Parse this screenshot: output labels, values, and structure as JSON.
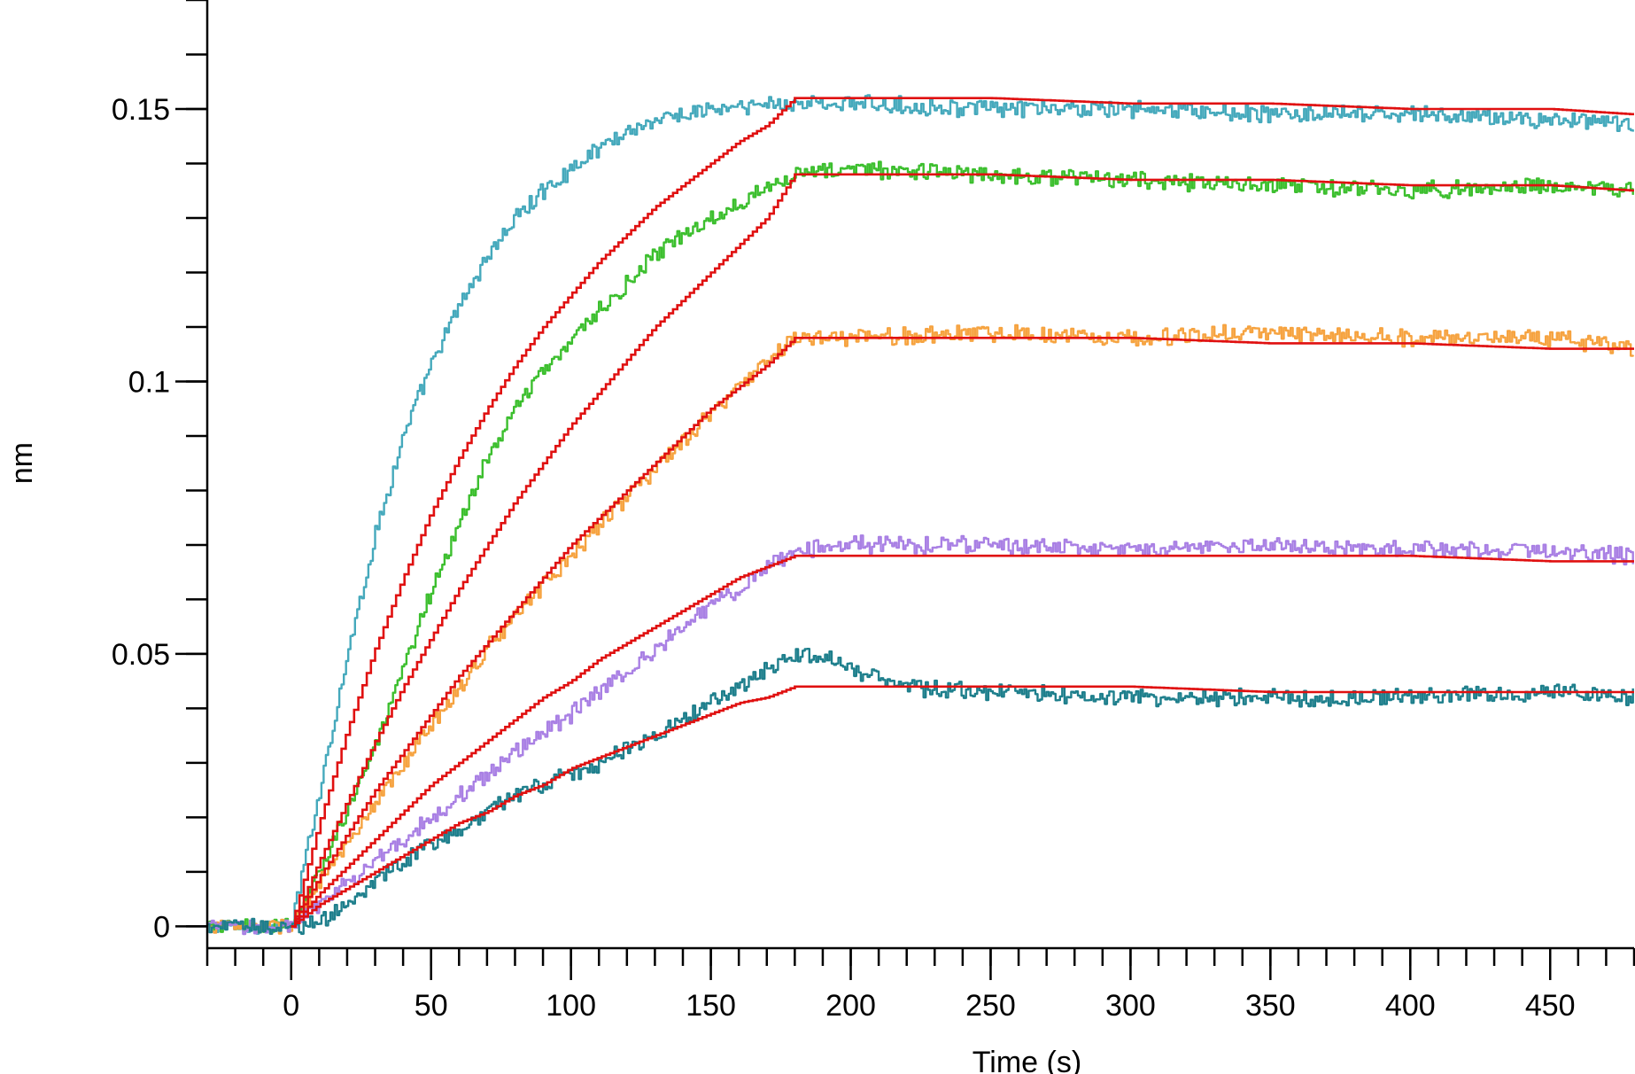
{
  "chart_data": {
    "type": "line",
    "title": "",
    "xlabel": "Time (s)",
    "ylabel": "nm",
    "xlim": [
      -30,
      480
    ],
    "ylim": [
      -0.004,
      0.17
    ],
    "x_ticks": [
      0,
      50,
      100,
      150,
      200,
      250,
      300,
      350,
      400,
      450
    ],
    "x_tick_labels": [
      "0",
      "50",
      "100",
      "150",
      "200",
      "250",
      "300",
      "350",
      "400",
      "450"
    ],
    "x_minor_step": 10,
    "y_ticks": [
      0,
      0.05,
      0.1,
      0.15
    ],
    "y_tick_labels": [
      "0",
      "0.05",
      "0.1",
      "0.15"
    ],
    "y_minor_step": 0.01,
    "grid": false,
    "legend": false,
    "association_end": 180,
    "series": [
      {
        "color": "#45A9BC",
        "role": "measured",
        "x": [
          -30,
          0,
          10,
          20,
          30,
          40,
          50,
          60,
          70,
          80,
          90,
          100,
          110,
          120,
          130,
          140,
          150,
          160,
          170,
          180,
          200,
          250,
          300,
          350,
          400,
          450,
          480
        ],
        "y": [
          0,
          0,
          0.025,
          0.05,
          0.072,
          0.09,
          0.103,
          0.114,
          0.123,
          0.13,
          0.135,
          0.139,
          0.143,
          0.146,
          0.148,
          0.149,
          0.15,
          0.15,
          0.151,
          0.151,
          0.151,
          0.15,
          0.15,
          0.149,
          0.149,
          0.148,
          0.147
        ]
      },
      {
        "color": "#E01010",
        "role": "fit",
        "x": [
          0,
          10,
          20,
          30,
          40,
          50,
          60,
          70,
          80,
          90,
          100,
          110,
          120,
          130,
          140,
          150,
          160,
          170,
          180,
          200,
          250,
          300,
          350,
          400,
          450,
          480
        ],
        "y": [
          0,
          0.019,
          0.036,
          0.051,
          0.064,
          0.076,
          0.086,
          0.095,
          0.103,
          0.11,
          0.116,
          0.122,
          0.127,
          0.132,
          0.136,
          0.14,
          0.144,
          0.147,
          0.152,
          0.152,
          0.152,
          0.151,
          0.151,
          0.15,
          0.15,
          0.149
        ]
      },
      {
        "color": "#3CBF2E",
        "role": "measured",
        "x": [
          -30,
          0,
          10,
          20,
          30,
          40,
          50,
          60,
          70,
          80,
          90,
          100,
          110,
          120,
          130,
          140,
          150,
          160,
          170,
          180,
          200,
          250,
          300,
          350,
          400,
          450,
          480
        ],
        "y": [
          0,
          0,
          0.01,
          0.022,
          0.033,
          0.047,
          0.062,
          0.074,
          0.086,
          0.095,
          0.102,
          0.108,
          0.113,
          0.118,
          0.123,
          0.127,
          0.13,
          0.133,
          0.136,
          0.138,
          0.139,
          0.138,
          0.137,
          0.136,
          0.135,
          0.136,
          0.135
        ]
      },
      {
        "color": "#E01010",
        "role": "fit",
        "x": [
          0,
          10,
          20,
          30,
          40,
          50,
          60,
          70,
          80,
          90,
          100,
          110,
          120,
          130,
          140,
          150,
          160,
          170,
          180,
          200,
          250,
          300,
          350,
          400,
          450,
          480
        ],
        "y": [
          0,
          0.012,
          0.023,
          0.034,
          0.044,
          0.053,
          0.062,
          0.07,
          0.078,
          0.085,
          0.092,
          0.098,
          0.104,
          0.11,
          0.115,
          0.12,
          0.125,
          0.13,
          0.138,
          0.138,
          0.138,
          0.137,
          0.137,
          0.136,
          0.136,
          0.135
        ]
      },
      {
        "color": "#F6A340",
        "role": "measured",
        "x": [
          -30,
          0,
          10,
          20,
          30,
          40,
          50,
          60,
          70,
          80,
          90,
          100,
          110,
          120,
          130,
          140,
          150,
          160,
          170,
          180,
          200,
          250,
          300,
          350,
          400,
          450,
          480
        ],
        "y": [
          0,
          0,
          0.008,
          0.015,
          0.022,
          0.03,
          0.037,
          0.044,
          0.051,
          0.057,
          0.063,
          0.068,
          0.074,
          0.079,
          0.084,
          0.089,
          0.094,
          0.099,
          0.104,
          0.108,
          0.108,
          0.109,
          0.108,
          0.109,
          0.108,
          0.108,
          0.106
        ]
      },
      {
        "color": "#E01010",
        "role": "fit",
        "x": [
          0,
          10,
          20,
          30,
          40,
          50,
          60,
          70,
          80,
          90,
          100,
          110,
          120,
          130,
          140,
          150,
          160,
          170,
          180,
          200,
          250,
          300,
          350,
          400,
          450,
          480
        ],
        "y": [
          0,
          0.009,
          0.017,
          0.025,
          0.032,
          0.039,
          0.046,
          0.052,
          0.058,
          0.064,
          0.07,
          0.075,
          0.08,
          0.085,
          0.09,
          0.095,
          0.099,
          0.103,
          0.108,
          0.108,
          0.108,
          0.108,
          0.107,
          0.107,
          0.106,
          0.106
        ]
      },
      {
        "color": "#A980E4",
        "role": "measured",
        "x": [
          -30,
          0,
          10,
          20,
          30,
          40,
          50,
          60,
          70,
          80,
          90,
          100,
          110,
          120,
          130,
          140,
          150,
          160,
          170,
          180,
          200,
          250,
          300,
          350,
          400,
          450,
          480
        ],
        "y": [
          0,
          0,
          0.004,
          0.008,
          0.012,
          0.016,
          0.02,
          0.024,
          0.028,
          0.032,
          0.036,
          0.039,
          0.043,
          0.047,
          0.051,
          0.055,
          0.059,
          0.062,
          0.066,
          0.069,
          0.07,
          0.07,
          0.069,
          0.07,
          0.069,
          0.069,
          0.068
        ]
      },
      {
        "color": "#E01010",
        "role": "fit",
        "x": [
          0,
          10,
          20,
          30,
          40,
          50,
          60,
          70,
          80,
          90,
          100,
          110,
          120,
          130,
          140,
          150,
          160,
          170,
          180,
          200,
          250,
          300,
          350,
          400,
          450,
          480
        ],
        "y": [
          0,
          0.006,
          0.011,
          0.016,
          0.021,
          0.026,
          0.03,
          0.034,
          0.038,
          0.042,
          0.045,
          0.049,
          0.052,
          0.055,
          0.058,
          0.061,
          0.064,
          0.066,
          0.068,
          0.068,
          0.068,
          0.068,
          0.068,
          0.068,
          0.067,
          0.067
        ]
      },
      {
        "color": "#1E7F8C",
        "role": "measured",
        "x": [
          -30,
          0,
          10,
          20,
          30,
          40,
          50,
          60,
          70,
          80,
          90,
          100,
          110,
          120,
          130,
          140,
          150,
          160,
          170,
          180,
          190,
          200,
          220,
          250,
          300,
          350,
          400,
          450,
          480
        ],
        "y": [
          0,
          0,
          0.001,
          0.004,
          0.008,
          0.012,
          0.015,
          0.018,
          0.021,
          0.024,
          0.026,
          0.028,
          0.03,
          0.033,
          0.035,
          0.038,
          0.041,
          0.044,
          0.047,
          0.05,
          0.05,
          0.047,
          0.044,
          0.043,
          0.042,
          0.042,
          0.042,
          0.043,
          0.042
        ]
      },
      {
        "color": "#E01010",
        "role": "fit",
        "x": [
          0,
          10,
          20,
          30,
          40,
          50,
          60,
          70,
          80,
          90,
          100,
          110,
          120,
          130,
          140,
          150,
          160,
          170,
          180,
          200,
          250,
          300,
          350,
          400,
          450,
          480
        ],
        "y": [
          0,
          0.004,
          0.007,
          0.01,
          0.013,
          0.016,
          0.019,
          0.021,
          0.024,
          0.026,
          0.029,
          0.031,
          0.033,
          0.035,
          0.037,
          0.039,
          0.041,
          0.042,
          0.044,
          0.044,
          0.044,
          0.044,
          0.043,
          0.043,
          0.043,
          0.043
        ]
      }
    ]
  }
}
